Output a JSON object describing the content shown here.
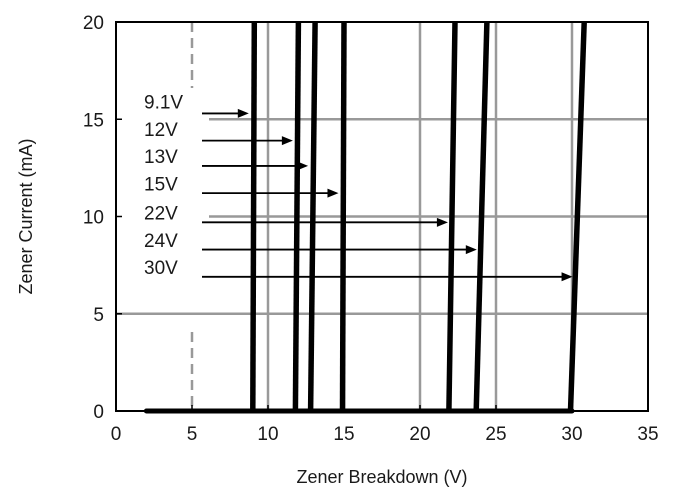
{
  "chart_data": {
    "type": "line",
    "title": "",
    "xlabel": "Zener Breakdown (V)",
    "ylabel": "Zener Current (mA)",
    "xlim": [
      0,
      35
    ],
    "ylim": [
      0,
      20
    ],
    "x_ticks": [
      0,
      5,
      10,
      15,
      20,
      25,
      30,
      35
    ],
    "y_ticks": [
      0,
      5,
      10,
      15,
      20
    ],
    "grid": true,
    "legend": "none",
    "colors": {
      "series": "#000000",
      "grid": "#999999",
      "frame": "#000000"
    },
    "baseline": {
      "x": [
        2,
        30
      ],
      "y": 0
    },
    "series": [
      {
        "name": "9.1V",
        "points": [
          [
            9.0,
            0
          ],
          [
            9.1,
            20
          ]
        ],
        "arrow_at": {
          "x": 9.0,
          "y": 15.3
        },
        "label_y": 15.9
      },
      {
        "name": "12V",
        "points": [
          [
            11.8,
            0
          ],
          [
            12.0,
            20
          ]
        ],
        "arrow_at": {
          "x": 11.9,
          "y": 13.9
        },
        "label_y": 14.5
      },
      {
        "name": "13V",
        "points": [
          [
            12.8,
            0
          ],
          [
            13.1,
            20
          ]
        ],
        "arrow_at": {
          "x": 12.9,
          "y": 12.6
        },
        "label_y": 13.1
      },
      {
        "name": "15V",
        "points": [
          [
            14.9,
            0
          ],
          [
            15.0,
            20
          ]
        ],
        "arrow_at": {
          "x": 14.9,
          "y": 11.2
        },
        "label_y": 11.7
      },
      {
        "name": "22V",
        "points": [
          [
            21.9,
            0
          ],
          [
            22.3,
            20
          ]
        ],
        "arrow_at": {
          "x": 22.1,
          "y": 9.7
        },
        "label_y": 10.2
      },
      {
        "name": "24V",
        "points": [
          [
            23.7,
            0
          ],
          [
            24.4,
            20
          ]
        ],
        "arrow_at": {
          "x": 24.0,
          "y": 8.3
        },
        "label_y": 8.8
      },
      {
        "name": "30V",
        "points": [
          [
            29.9,
            0
          ],
          [
            30.8,
            20
          ]
        ],
        "arrow_at": {
          "x": 30.3,
          "y": 6.9
        },
        "label_y": 7.4
      }
    ]
  }
}
